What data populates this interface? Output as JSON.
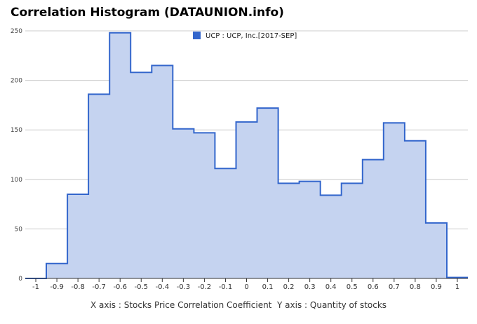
{
  "chart_data": {
    "type": "area",
    "title": "Correlation Histogram (DATAUNION.info)",
    "xlabel": "X axis : Stocks Price Correlation Coefficient",
    "ylabel": "Y axis : Quantity of stocks",
    "xlim": [
      -1.05,
      1.05
    ],
    "ylim": [
      0,
      250
    ],
    "yticks": [
      0,
      50,
      100,
      150,
      200,
      250
    ],
    "xticks": [
      -1,
      -0.9,
      -0.8,
      -0.7,
      -0.6,
      -0.5,
      -0.4,
      -0.3,
      -0.2,
      -0.1,
      0,
      0.1,
      0.2,
      0.3,
      0.4,
      0.5,
      0.6,
      0.7,
      0.8,
      0.9,
      1
    ],
    "xtick_labels": [
      "-1",
      "-0.9",
      "-0.8",
      "-0.7",
      "-0.6",
      "-0.5",
      "-0.4",
      "-0.3",
      "-0.2",
      "-0.1",
      "0",
      "0.1",
      "0.2",
      "0.3",
      "0.4",
      "0.5",
      "0.6",
      "0.7",
      "0.8",
      "0.9",
      "1"
    ],
    "grid": true,
    "legend_position": "top",
    "colors": {
      "line": "#3366cc",
      "fill": "#c5d3f0",
      "grid": "#cccccc"
    },
    "series": [
      {
        "name": "UCP : UCP, Inc.[2017-SEP]",
        "x": [
          -1,
          -0.9,
          -0.8,
          -0.7,
          -0.6,
          -0.5,
          -0.4,
          -0.3,
          -0.2,
          -0.1,
          0,
          0.1,
          0.2,
          0.3,
          0.4,
          0.5,
          0.6,
          0.7,
          0.8,
          0.9,
          1
        ],
        "values": [
          0,
          15,
          85,
          186,
          248,
          208,
          215,
          151,
          147,
          111,
          158,
          172,
          96,
          98,
          84,
          96,
          120,
          157,
          139,
          56,
          1
        ]
      }
    ]
  }
}
